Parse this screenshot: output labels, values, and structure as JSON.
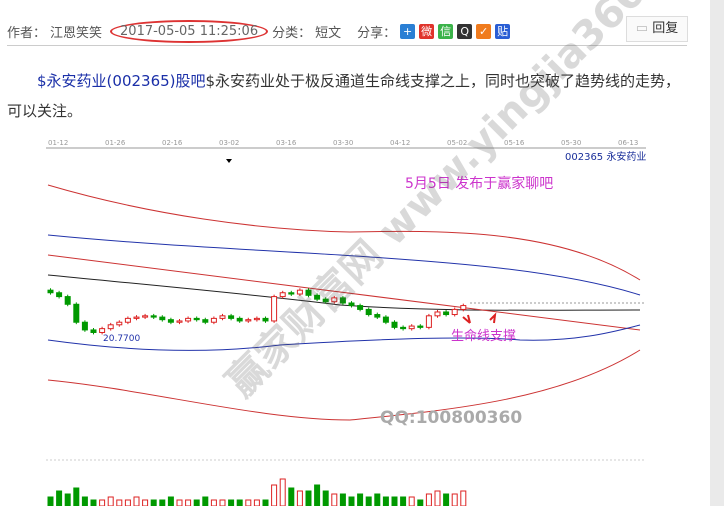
{
  "meta": {
    "author_label": "作者：",
    "author": "江恩笑笑",
    "date": "2017-05-05 11:25:06",
    "category_label": "分类：",
    "category": "短文",
    "share_label": "分享：",
    "share_icons": [
      {
        "name": "plus-share-icon",
        "color": "#2a7fd4",
        "glyph": "+"
      },
      {
        "name": "weibo-icon",
        "color": "#e0332b",
        "glyph": "微"
      },
      {
        "name": "wechat-icon",
        "color": "#3bb34a",
        "glyph": "信"
      },
      {
        "name": "qq-icon",
        "color": "#333333",
        "glyph": "Q"
      },
      {
        "name": "qzone-icon",
        "color": "#f07b1d",
        "glyph": "✓"
      },
      {
        "name": "tieba-icon",
        "color": "#2a5ed4",
        "glyph": "贴"
      }
    ]
  },
  "reply_label": "回复",
  "post": {
    "link_text": "$永安药业(002365)股吧",
    "body": "$永安药业处于极反通道生命线支撑之上，同时也突破了趋势线的走势，可以关注。"
  },
  "chart_data": {
    "type": "candlestick",
    "stock_label": "002365 永安药业",
    "annotation_top": "5月5日 发布于赢家聊吧",
    "annotation_support": "生命线支撑",
    "low_label": "20.7700",
    "watermark": "赢家财富网 www.yingjia360.com",
    "qq": "QQ:100800360",
    "x_ticks": [
      "01-12",
      "01-26",
      "02-16",
      "03-02",
      "03-16",
      "03-30",
      "04-12",
      "05-02",
      "05-16",
      "05-30",
      "06-13"
    ],
    "colors": {
      "up": "#d22",
      "down": "#090",
      "upper_band": "#c33",
      "mid": "#222",
      "lower_band": "#2233aa"
    },
    "closes": [
      24.3,
      24.0,
      23.4,
      22.0,
      21.4,
      21.2,
      21.5,
      21.8,
      22.0,
      22.3,
      22.4,
      22.5,
      22.4,
      22.2,
      22.0,
      22.1,
      22.3,
      22.2,
      22.0,
      22.3,
      22.5,
      22.3,
      22.1,
      22.2,
      22.3,
      22.1,
      24.0,
      24.3,
      24.2,
      24.5,
      24.1,
      23.8,
      23.6,
      23.9,
      23.5,
      23.3,
      23.0,
      22.6,
      22.4,
      22.0,
      21.6,
      21.5,
      21.7,
      21.6,
      22.5,
      22.8,
      22.6,
      23.0,
      23.3
    ],
    "volumes": [
      3,
      5,
      4,
      6,
      3,
      2,
      2,
      3,
      2,
      2,
      3,
      2,
      2,
      2,
      3,
      2,
      2,
      2,
      3,
      2,
      2,
      2,
      2,
      2,
      2,
      2,
      7,
      9,
      6,
      5,
      5,
      7,
      5,
      4,
      4,
      3,
      4,
      3,
      4,
      3,
      3,
      3,
      3,
      2,
      4,
      5,
      4,
      4,
      5
    ]
  }
}
